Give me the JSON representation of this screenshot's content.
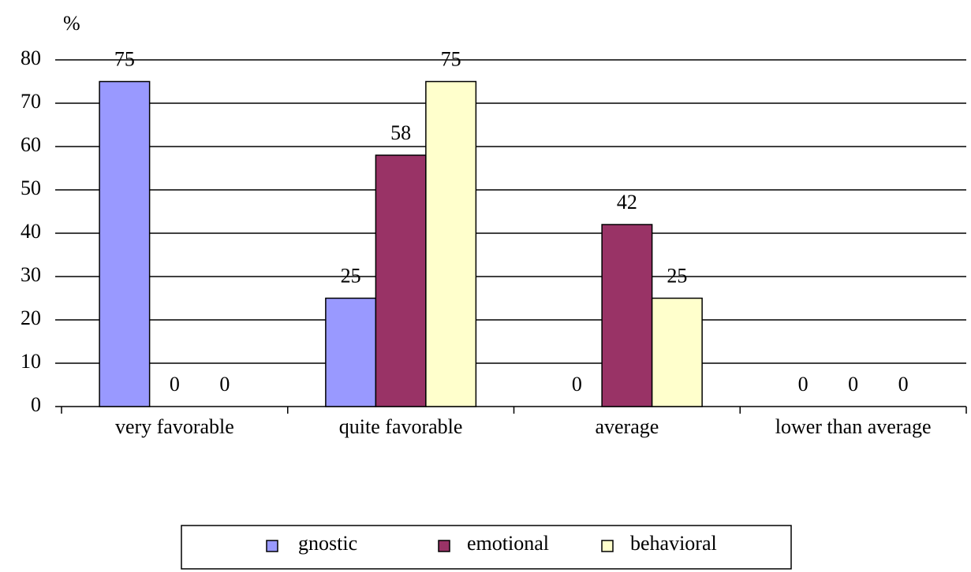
{
  "chart_data": {
    "type": "bar",
    "ylabel": "%",
    "categories": [
      "very favorable",
      "quite favorable",
      "average",
      "lower than average"
    ],
    "series": [
      {
        "name": "gnostic",
        "color": "#9999ff",
        "values": [
          75,
          25,
          0,
          0
        ]
      },
      {
        "name": "emotional",
        "color": "#993366",
        "values": [
          0,
          58,
          42,
          0
        ]
      },
      {
        "name": "behavioral",
        "color": "#ffffcc",
        "values": [
          0,
          75,
          25,
          0
        ]
      }
    ],
    "ylim": [
      0,
      80
    ],
    "yticks": [
      0,
      10,
      20,
      30,
      40,
      50,
      60,
      70,
      80
    ],
    "grid": true,
    "legend": "bottom"
  }
}
